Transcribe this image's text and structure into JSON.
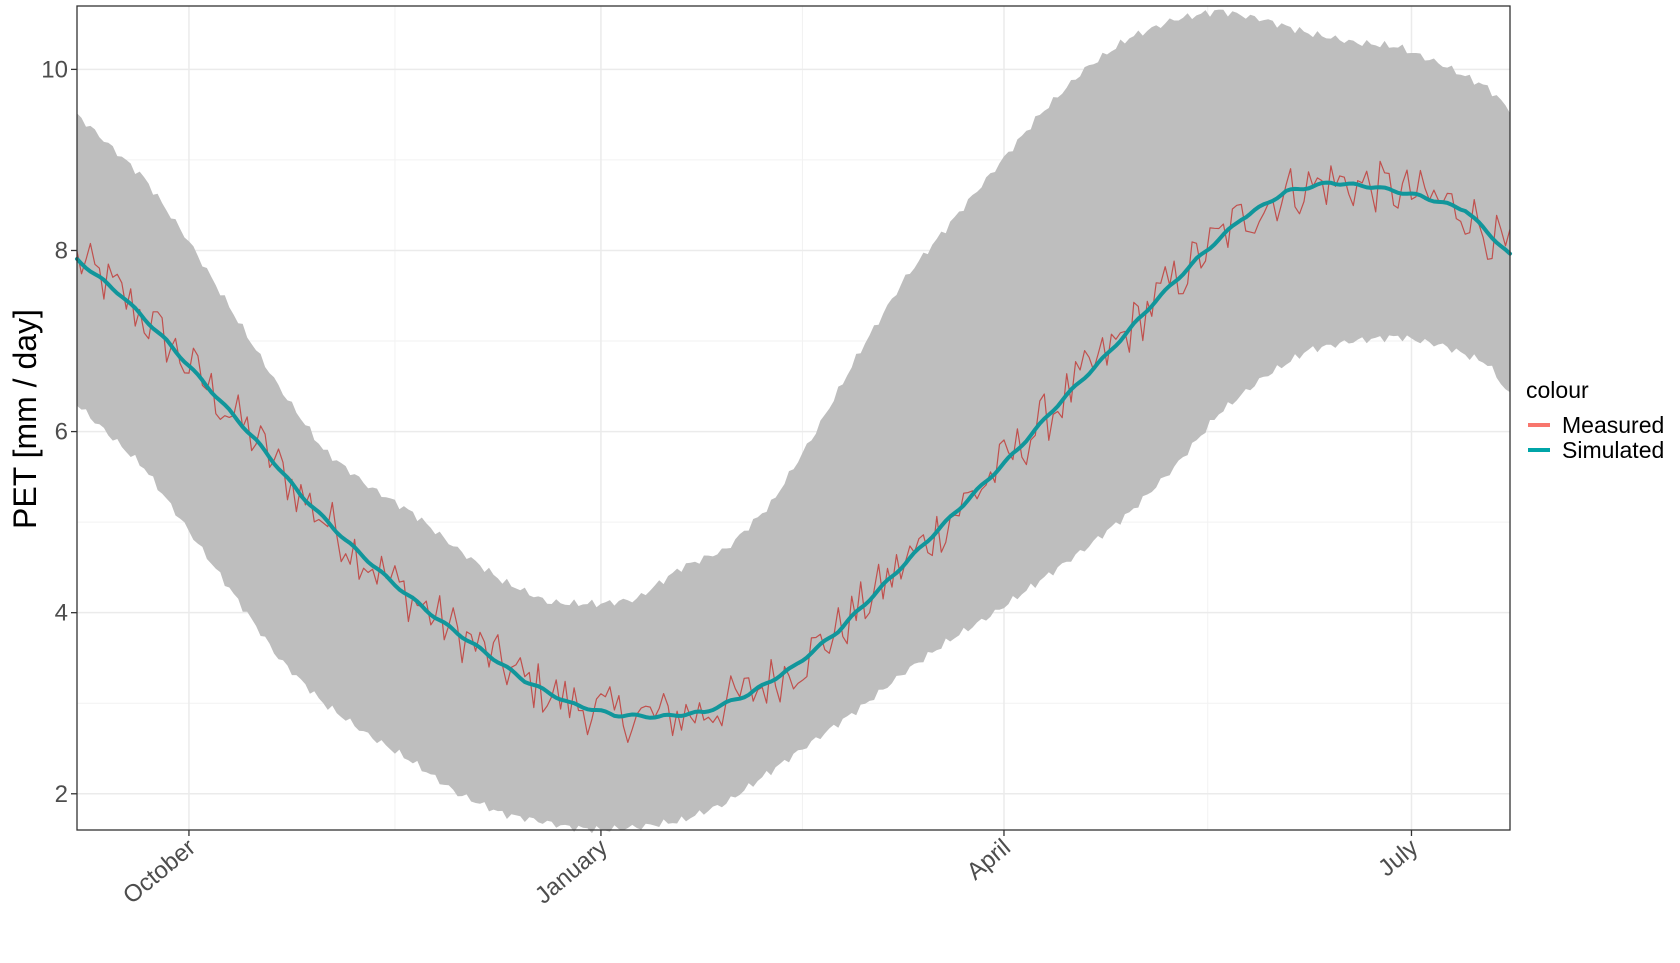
{
  "chart_data": {
    "type": "line",
    "title": "",
    "xlabel": "",
    "ylabel": "PET [mm / day]",
    "ylim": [
      1.6,
      10.7
    ],
    "yticks": [
      2,
      4,
      6,
      8,
      10
    ],
    "x_range_days": [
      -25,
      295
    ],
    "x_ticks": [
      {
        "label": "October",
        "day": 0
      },
      {
        "label": "January",
        "day": 92
      },
      {
        "label": "April",
        "day": 182
      },
      {
        "label": "July",
        "day": 273
      }
    ],
    "x_minor_ticks_days": [
      46,
      137,
      227.5
    ],
    "grid": true,
    "legend": {
      "title": "colour",
      "position": "right"
    },
    "band": {
      "fill": "#bebebe",
      "x": [
        -25,
        -10,
        0,
        10,
        20,
        30,
        40,
        50,
        60,
        70,
        80,
        85,
        92,
        100,
        110,
        120,
        130,
        140,
        150,
        160,
        170,
        180,
        190,
        200,
        210,
        220,
        230,
        240,
        250,
        260,
        270,
        280,
        290,
        295
      ],
      "lower": [
        6.3,
        5.6,
        4.9,
        4.2,
        3.5,
        3.0,
        2.65,
        2.35,
        2.0,
        1.78,
        1.68,
        1.63,
        1.6,
        1.63,
        1.7,
        1.9,
        2.25,
        2.6,
        2.95,
        3.35,
        3.7,
        4.0,
        4.35,
        4.7,
        5.1,
        5.6,
        6.2,
        6.6,
        6.9,
        7.0,
        7.05,
        6.95,
        6.75,
        6.4
      ],
      "upper": [
        9.5,
        8.8,
        8.1,
        7.3,
        6.5,
        5.8,
        5.4,
        5.1,
        4.7,
        4.35,
        4.12,
        4.1,
        4.1,
        4.15,
        4.5,
        4.7,
        5.2,
        6.0,
        6.9,
        7.7,
        8.3,
        8.9,
        9.5,
        10.0,
        10.35,
        10.55,
        10.65,
        10.55,
        10.4,
        10.3,
        10.25,
        10.05,
        9.8,
        9.55
      ]
    },
    "series": [
      {
        "name": "Simulated",
        "color": "#00a5a8",
        "x": [
          -25,
          -15,
          -5,
          5,
          15,
          25,
          35,
          45,
          55,
          65,
          75,
          85,
          95,
          105,
          115,
          125,
          135,
          145,
          155,
          165,
          175,
          185,
          195,
          205,
          215,
          225,
          235,
          245,
          255,
          265,
          275,
          285,
          295
        ],
        "values": [
          7.9,
          7.5,
          7.0,
          6.45,
          5.9,
          5.3,
          4.8,
          4.35,
          3.95,
          3.6,
          3.25,
          3.0,
          2.87,
          2.85,
          2.9,
          3.1,
          3.4,
          3.8,
          4.3,
          4.8,
          5.3,
          5.8,
          6.35,
          6.85,
          7.4,
          7.9,
          8.35,
          8.65,
          8.75,
          8.7,
          8.6,
          8.45,
          7.95
        ]
      },
      {
        "name": "Measured",
        "color": "#f8766d",
        "noise_amplitude": 0.3
      }
    ]
  }
}
